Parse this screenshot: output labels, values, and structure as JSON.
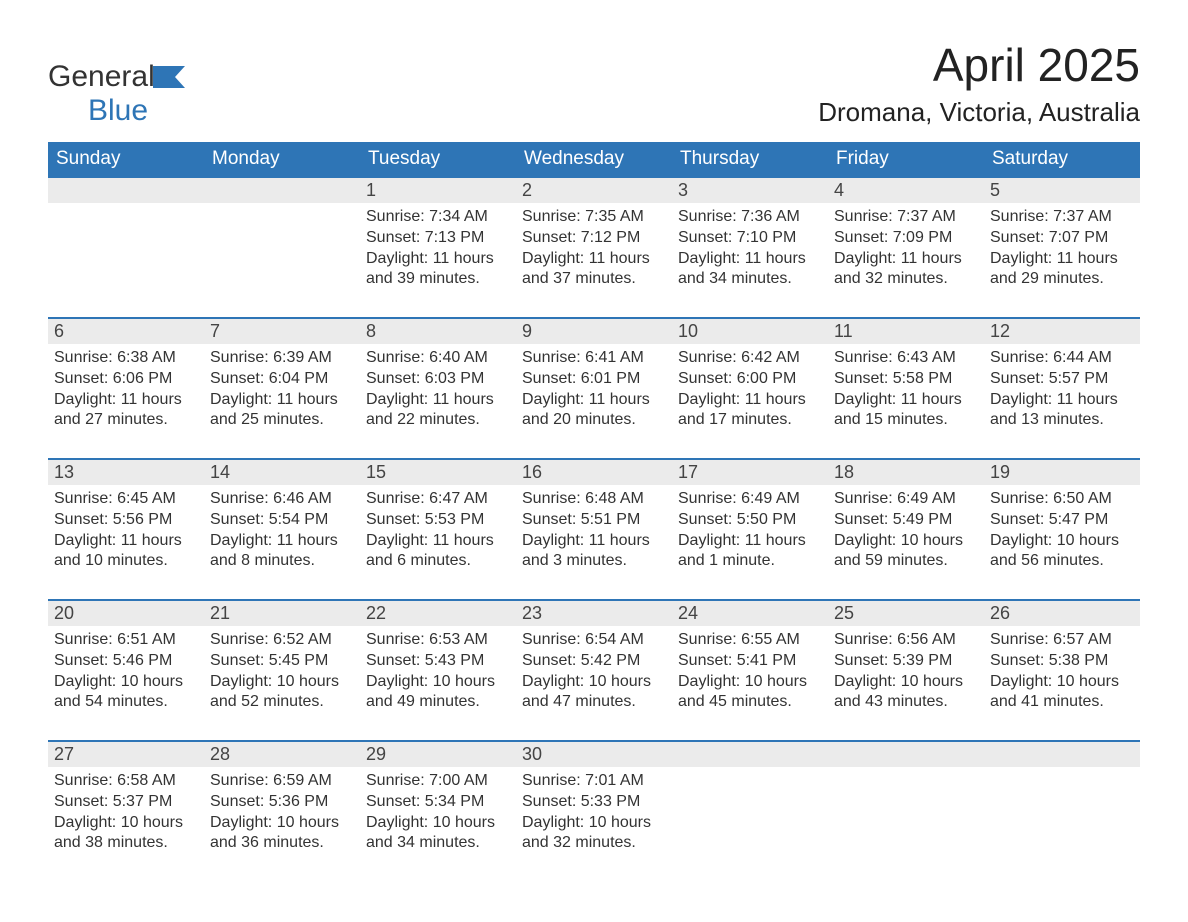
{
  "logo": {
    "general": "General",
    "blue": "Blue",
    "accent_color": "#2e75b6"
  },
  "title": "April 2025",
  "location": "Dromana, Victoria, Australia",
  "colors": {
    "header_bg": "#2e75b6",
    "header_text": "#ffffff",
    "daynum_bg": "#ebebeb",
    "border_top": "#2e75b6",
    "body_text": "#333333",
    "title_text": "#222222"
  },
  "fonts": {
    "title_size_pt": 34,
    "location_size_pt": 20,
    "weekday_size_pt": 14,
    "daynum_size_pt": 14,
    "cell_size_pt": 12
  },
  "weekdays": [
    "Sunday",
    "Monday",
    "Tuesday",
    "Wednesday",
    "Thursday",
    "Friday",
    "Saturday"
  ],
  "weeks": [
    [
      null,
      null,
      {
        "n": "1",
        "sr": "7:34 AM",
        "ss": "7:13 PM",
        "dl": "11 hours and 39 minutes."
      },
      {
        "n": "2",
        "sr": "7:35 AM",
        "ss": "7:12 PM",
        "dl": "11 hours and 37 minutes."
      },
      {
        "n": "3",
        "sr": "7:36 AM",
        "ss": "7:10 PM",
        "dl": "11 hours and 34 minutes."
      },
      {
        "n": "4",
        "sr": "7:37 AM",
        "ss": "7:09 PM",
        "dl": "11 hours and 32 minutes."
      },
      {
        "n": "5",
        "sr": "7:37 AM",
        "ss": "7:07 PM",
        "dl": "11 hours and 29 minutes."
      }
    ],
    [
      {
        "n": "6",
        "sr": "6:38 AM",
        "ss": "6:06 PM",
        "dl": "11 hours and 27 minutes."
      },
      {
        "n": "7",
        "sr": "6:39 AM",
        "ss": "6:04 PM",
        "dl": "11 hours and 25 minutes."
      },
      {
        "n": "8",
        "sr": "6:40 AM",
        "ss": "6:03 PM",
        "dl": "11 hours and 22 minutes."
      },
      {
        "n": "9",
        "sr": "6:41 AM",
        "ss": "6:01 PM",
        "dl": "11 hours and 20 minutes."
      },
      {
        "n": "10",
        "sr": "6:42 AM",
        "ss": "6:00 PM",
        "dl": "11 hours and 17 minutes."
      },
      {
        "n": "11",
        "sr": "6:43 AM",
        "ss": "5:58 PM",
        "dl": "11 hours and 15 minutes."
      },
      {
        "n": "12",
        "sr": "6:44 AM",
        "ss": "5:57 PM",
        "dl": "11 hours and 13 minutes."
      }
    ],
    [
      {
        "n": "13",
        "sr": "6:45 AM",
        "ss": "5:56 PM",
        "dl": "11 hours and 10 minutes."
      },
      {
        "n": "14",
        "sr": "6:46 AM",
        "ss": "5:54 PM",
        "dl": "11 hours and 8 minutes."
      },
      {
        "n": "15",
        "sr": "6:47 AM",
        "ss": "5:53 PM",
        "dl": "11 hours and 6 minutes."
      },
      {
        "n": "16",
        "sr": "6:48 AM",
        "ss": "5:51 PM",
        "dl": "11 hours and 3 minutes."
      },
      {
        "n": "17",
        "sr": "6:49 AM",
        "ss": "5:50 PM",
        "dl": "11 hours and 1 minute."
      },
      {
        "n": "18",
        "sr": "6:49 AM",
        "ss": "5:49 PM",
        "dl": "10 hours and 59 minutes."
      },
      {
        "n": "19",
        "sr": "6:50 AM",
        "ss": "5:47 PM",
        "dl": "10 hours and 56 minutes."
      }
    ],
    [
      {
        "n": "20",
        "sr": "6:51 AM",
        "ss": "5:46 PM",
        "dl": "10 hours and 54 minutes."
      },
      {
        "n": "21",
        "sr": "6:52 AM",
        "ss": "5:45 PM",
        "dl": "10 hours and 52 minutes."
      },
      {
        "n": "22",
        "sr": "6:53 AM",
        "ss": "5:43 PM",
        "dl": "10 hours and 49 minutes."
      },
      {
        "n": "23",
        "sr": "6:54 AM",
        "ss": "5:42 PM",
        "dl": "10 hours and 47 minutes."
      },
      {
        "n": "24",
        "sr": "6:55 AM",
        "ss": "5:41 PM",
        "dl": "10 hours and 45 minutes."
      },
      {
        "n": "25",
        "sr": "6:56 AM",
        "ss": "5:39 PM",
        "dl": "10 hours and 43 minutes."
      },
      {
        "n": "26",
        "sr": "6:57 AM",
        "ss": "5:38 PM",
        "dl": "10 hours and 41 minutes."
      }
    ],
    [
      {
        "n": "27",
        "sr": "6:58 AM",
        "ss": "5:37 PM",
        "dl": "10 hours and 38 minutes."
      },
      {
        "n": "28",
        "sr": "6:59 AM",
        "ss": "5:36 PM",
        "dl": "10 hours and 36 minutes."
      },
      {
        "n": "29",
        "sr": "7:00 AM",
        "ss": "5:34 PM",
        "dl": "10 hours and 34 minutes."
      },
      {
        "n": "30",
        "sr": "7:01 AM",
        "ss": "5:33 PM",
        "dl": "10 hours and 32 minutes."
      },
      null,
      null,
      null
    ]
  ],
  "labels": {
    "sunrise": "Sunrise: ",
    "sunset": "Sunset: ",
    "daylight": "Daylight: "
  }
}
